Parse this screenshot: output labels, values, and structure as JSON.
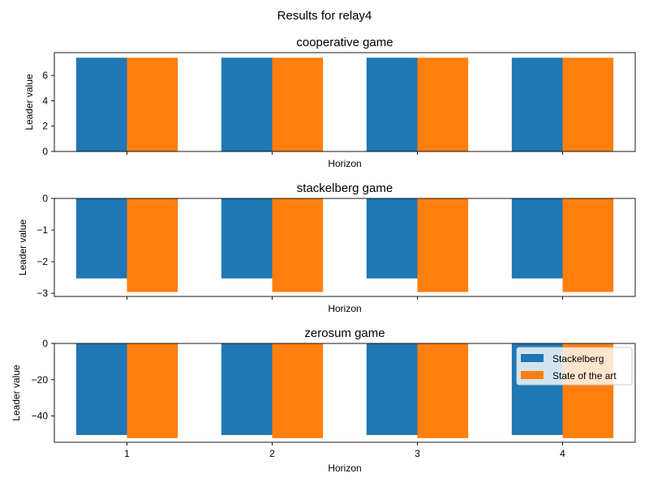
{
  "figure": {
    "suptitle": "Results for relay4"
  },
  "colors": {
    "stackelberg": "#1f77b4",
    "state_of_the_art": "#ff7f0e"
  },
  "legend": {
    "location": "upper-right",
    "panel": "zerosum game",
    "entries": [
      "Stackelberg",
      "State of the art"
    ]
  },
  "chart_data": [
    {
      "type": "bar",
      "title": "cooperative game",
      "xlabel": "Horizon",
      "ylabel": "Leader value",
      "categories": [
        "1",
        "2",
        "3",
        "4"
      ],
      "show_xtick_labels": false,
      "ylim": [
        0,
        7.8
      ],
      "yticks": [
        0,
        2,
        4,
        6
      ],
      "series": [
        {
          "name": "Stackelberg",
          "values": [
            7.4,
            7.4,
            7.4,
            7.4
          ]
        },
        {
          "name": "State of the art",
          "values": [
            7.4,
            7.4,
            7.4,
            7.4
          ]
        }
      ]
    },
    {
      "type": "bar",
      "title": "stackelberg game",
      "xlabel": "Horizon",
      "ylabel": "Leader value",
      "categories": [
        "1",
        "2",
        "3",
        "4"
      ],
      "show_xtick_labels": false,
      "ylim": [
        -3.1,
        0
      ],
      "yticks": [
        -3,
        -2,
        -1,
        0
      ],
      "ytick_labels": [
        "−3",
        "−2",
        "−1",
        "0"
      ],
      "series": [
        {
          "name": "Stackelberg",
          "values": [
            -2.53,
            -2.53,
            -2.53,
            -2.53
          ]
        },
        {
          "name": "State of the art",
          "values": [
            -2.96,
            -2.96,
            -2.96,
            -2.96
          ]
        }
      ]
    },
    {
      "type": "bar",
      "title": "zerosum game",
      "xlabel": "Horizon",
      "ylabel": "Leader value",
      "categories": [
        "1",
        "2",
        "3",
        "4"
      ],
      "show_xtick_labels": true,
      "ylim": [
        -54.5,
        0
      ],
      "yticks": [
        -40,
        -20,
        0
      ],
      "ytick_labels": [
        "−40",
        "−20",
        "0"
      ],
      "series": [
        {
          "name": "Stackelberg",
          "values": [
            -50.5,
            -50.5,
            -50.5,
            -50.5
          ]
        },
        {
          "name": "State of the art",
          "values": [
            -52.2,
            -52.2,
            -52.2,
            -52.2
          ]
        }
      ]
    }
  ]
}
